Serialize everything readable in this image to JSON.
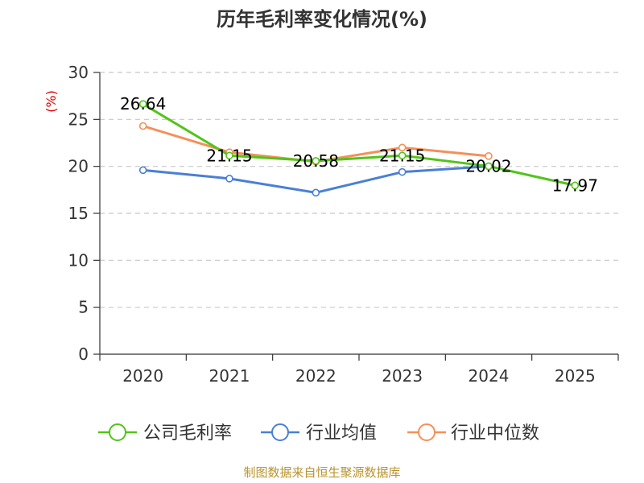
{
  "chart_data": {
    "type": "line",
    "title": "历年毛利率变化情况(%)",
    "ylabel": "(%)",
    "xlabel": "",
    "categories": [
      "2020",
      "2021",
      "2022",
      "2023",
      "2024",
      "2025"
    ],
    "ylim": [
      0,
      30
    ],
    "yticks": [
      "0",
      "5",
      "10",
      "15",
      "20",
      "25",
      "30"
    ],
    "grid": true,
    "legend_position": "bottom",
    "series": [
      {
        "name": "公司毛利率",
        "color": "#52c41a",
        "values": [
          26.64,
          21.15,
          20.58,
          21.15,
          20.02,
          17.97
        ],
        "labels": [
          "26.64",
          "21.15",
          "20.58",
          "21.15",
          "20.02",
          "17.97"
        ]
      },
      {
        "name": "行业均值",
        "color": "#4a7fd6",
        "values": [
          19.6,
          18.7,
          17.2,
          19.4,
          20.0,
          null
        ]
      },
      {
        "name": "行业中位数",
        "color": "#f4905a",
        "values": [
          24.3,
          21.5,
          20.5,
          22.0,
          21.1,
          null
        ]
      }
    ],
    "source": "制图数据来自恒生聚源数据库"
  }
}
